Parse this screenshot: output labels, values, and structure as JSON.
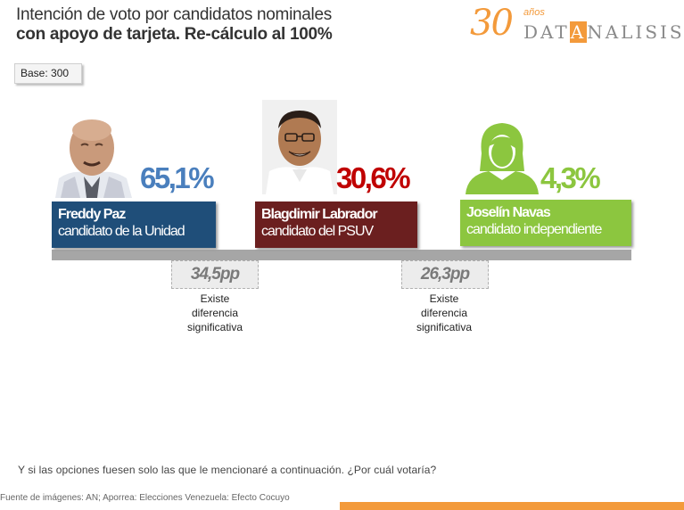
{
  "header": {
    "title_line1": "Intención de voto por candidatos nominales",
    "title_line2": "con apoyo de tarjeta. Re-cálculo al 100%"
  },
  "logo": {
    "number": "30",
    "anos": "años",
    "brand_pre": "DAT",
    "brand_hl": "A",
    "brand_post": "NALISIS"
  },
  "base_label": "Base: 300",
  "candidates": [
    {
      "percent": "65,1%",
      "name": "Freddy Paz",
      "role": "candidato de la Unidad",
      "color": "#1f4e79",
      "percent_color": "#4a7fbd"
    },
    {
      "percent": "30,6%",
      "name": "Blagdimir Labrador",
      "role": "candidato del PSUV",
      "color": "#6b1f1f",
      "percent_color": "#c00000"
    },
    {
      "percent": "4,3%",
      "name": "Joselín Navas",
      "role": "candidato independiente",
      "color": "#8cc63f",
      "percent_color": "#8cc63f"
    }
  ],
  "differences": [
    {
      "value": "34,5pp",
      "note_l1": "Existe",
      "note_l2": "diferencia",
      "note_l3": "significativa"
    },
    {
      "value": "26,3pp",
      "note_l1": "Existe",
      "note_l2": "diferencia",
      "note_l3": "significativa"
    }
  ],
  "question": "Y si las opciones fuesen solo las que le mencionaré a continuación. ¿Por cuál votaría?",
  "source": "Fuente de imágenes: AN; Aporrea: Elecciones Venezuela: Efecto Cocuyo",
  "colors": {
    "accent": "#f39a3b",
    "band": "#a6a6a6"
  }
}
